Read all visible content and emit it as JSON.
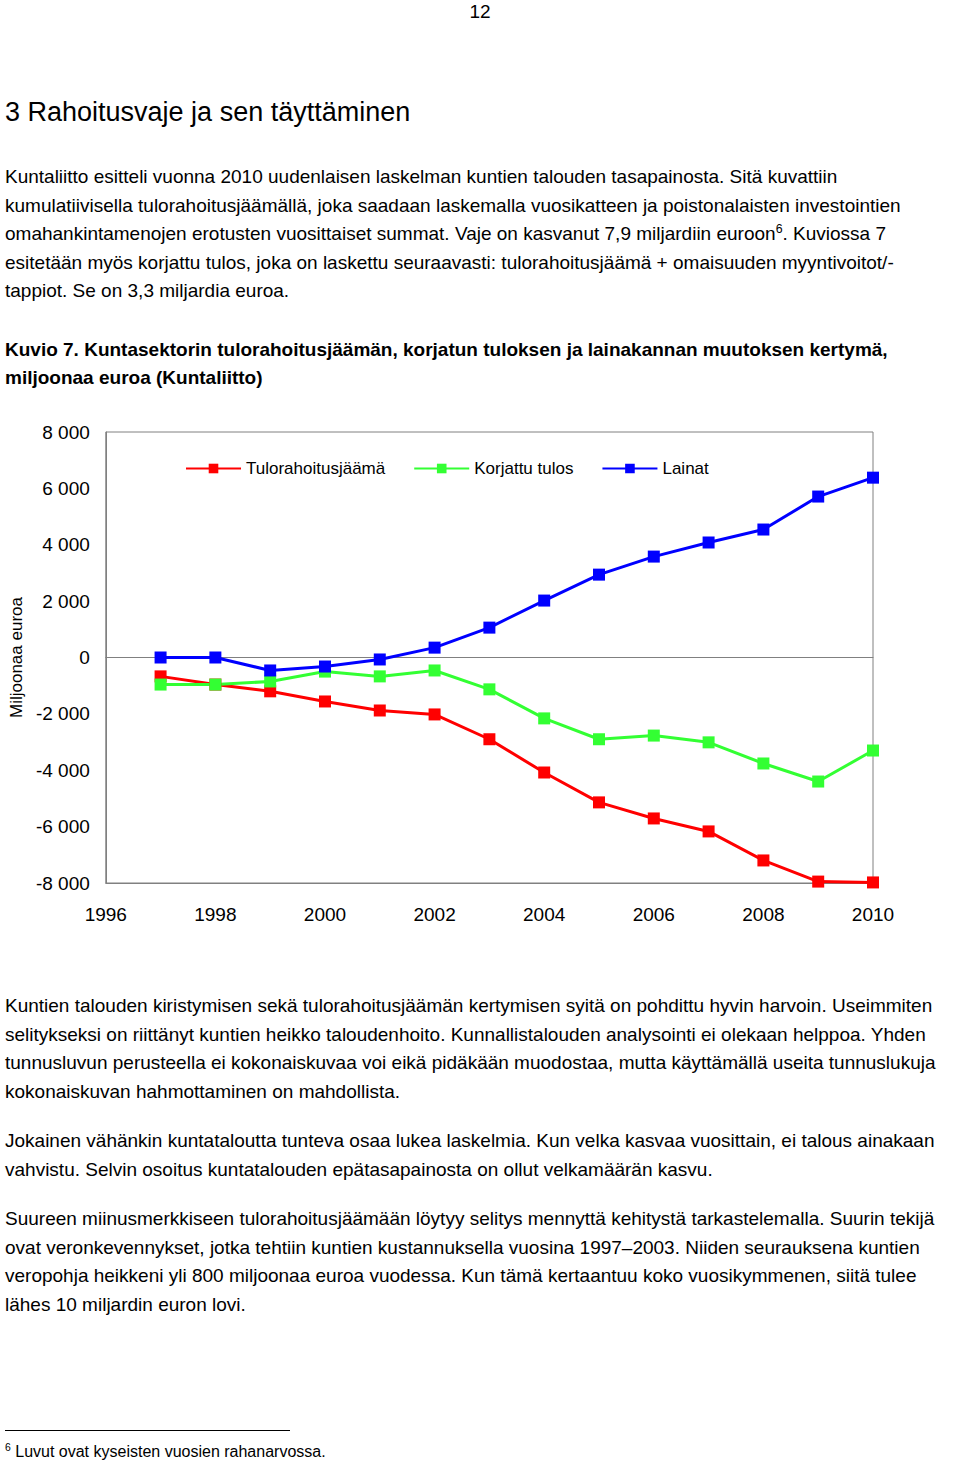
{
  "page_number": "12",
  "heading": "3 Rahoitusvaje ja sen täyttäminen",
  "intro": [
    {
      "text": "Kuntaliitto esitteli vuonna 2010 uudenlaisen laskelman kuntien talouden tasapainosta. Sitä kuvattiin kumulatiivisella tulorahoitusjäämällä, joka saadaan laskemalla vuosikatteen ja poistonalaisten investointien omahankintamenojen erotusten vuosittaiset summat. Vaje on kasvanut 7,9 miljardiin euroon"
    },
    {
      "sup": "6"
    },
    {
      "text": ". Kuviossa 7 esitetään myös korjattu tulos, joka on laskettu seuraavasti: tulorahoitusjäämä + omaisuuden myyntivoitot/-tappiot. Se on 3,3 miljardia euroa."
    }
  ],
  "figure_caption": "Kuvio 7. Kuntasektorin tulorahoitusjäämän, korjatun tuloksen ja lainakannan muutoksen kertymä, miljoonaa euroa (Kuntaliitto)",
  "chart_data": {
    "type": "line",
    "y_label": "Miljoonaa euroa",
    "x": [
      1997,
      1998,
      1999,
      2000,
      2001,
      2002,
      2003,
      2004,
      2005,
      2006,
      2007,
      2008,
      2009,
      2010
    ],
    "series": [
      {
        "name": "Tulorahoitusjäämä",
        "color": "#ff0000",
        "values": [
          -670,
          -960,
          -1200,
          -1560,
          -1880,
          -2020,
          -2900,
          -4080,
          -5140,
          -5710,
          -6170,
          -7200,
          -7950,
          -7980
        ]
      },
      {
        "name": "Korjattu tulos",
        "color": "#33ff33",
        "values": [
          -960,
          -960,
          -850,
          -500,
          -670,
          -460,
          -1130,
          -2160,
          -2900,
          -2770,
          -3010,
          -3760,
          -4400,
          -3300
        ]
      },
      {
        "name": "Lainat",
        "color": "#0000ff",
        "values": [
          0,
          0,
          -460,
          -320,
          -70,
          350,
          1060,
          2020,
          2940,
          3580,
          4080,
          4540,
          5710,
          6380
        ]
      }
    ],
    "xlim": [
      1996,
      2010
    ],
    "xticks": [
      1996,
      1998,
      2000,
      2002,
      2004,
      2006,
      2008,
      2010
    ],
    "ylim": [
      -8000,
      8000
    ],
    "yticks": [
      {
        "value": -8000,
        "label": "-8 000"
      },
      {
        "value": -6000,
        "label": "-6 000"
      },
      {
        "value": -4000,
        "label": "-4 000"
      },
      {
        "value": -2000,
        "label": "-2 000"
      },
      0,
      {
        "value": 2000,
        "label": "2 000"
      },
      {
        "value": 4000,
        "label": "4 000"
      },
      {
        "value": 6000,
        "label": "6 000"
      },
      {
        "value": 8000,
        "label": "8 000"
      }
    ],
    "grid": false,
    "legend": "top",
    "marker": "square"
  },
  "paragraphs": [
    "Kuntien talouden kiristymisen sekä tulorahoitusjäämän kertymisen syitä on pohdittu hyvin harvoin. Useimmiten selitykseksi on riittänyt kuntien heikko taloudenhoito. Kunnallistalouden analysointi ei olekaan helppoa. Yhden tunnusluvun perusteella ei kokonaiskuvaa voi eikä pidäkään muodostaa, mutta käyttämällä useita tunnuslukuja kokonaiskuvan hahmottaminen on mahdollista.",
    "Jokainen vähänkin kuntataloutta tunteva osaa lukea laskelmia. Kun velka kasvaa vuosittain, ei talous ainakaan vahvistu. Selvin osoitus kuntatalouden epätasapainosta on ollut velkamäärän kasvu.",
    "Suureen miinusmerkkiseen tulorahoitusjäämään löytyy selitys mennyttä kehitystä tarkastelemalla. Suurin tekijä ovat veronkevennykset, jotka tehtiin kuntien kustannuksella vuosina 1997–2003. Niiden seurauksena kuntien veropohja heikkeni yli 800 miljoonaa euroa vuodessa. Kun tämä kertaantuu koko vuosikymmenen, siitä tulee lähes 10 miljardin euron lovi."
  ],
  "footnote": {
    "mark": "6",
    "text": "Luvut ovat kyseisten vuosien rahanarvossa."
  }
}
